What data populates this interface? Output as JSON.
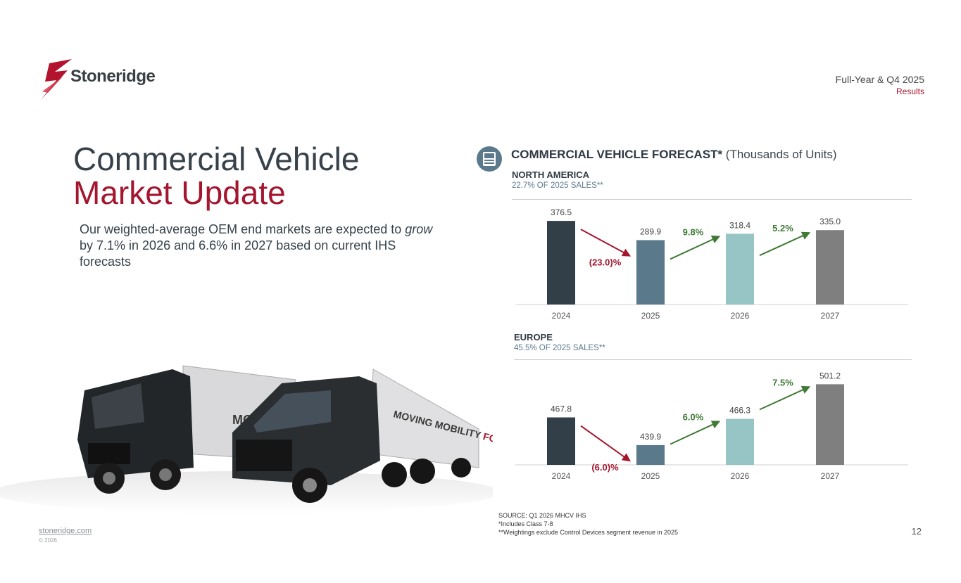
{
  "brand": {
    "name": "Stoneridge",
    "red": "#a3162e"
  },
  "header": {
    "line1": "Full-Year & Q4 2025",
    "line2": "Results"
  },
  "title": {
    "line1": "Commercial Vehicle",
    "line2": "Market Update"
  },
  "body": {
    "pre": "Our weighted-average OEM end markets are expected to ",
    "emph": "grow",
    "post": " by 7.1% in 2026 and 6.6% in 2027 based on current IHS forecasts"
  },
  "truck_banner": {
    "left": "MOVING",
    "right_part1": "MOVING MOBILITY ",
    "right_part2": "FORWARD"
  },
  "forecast": {
    "title": "COMMERCIAL VEHICLE FORECAST*",
    "unit": "(Thousands of Units)",
    "icon": "truck-front-icon"
  },
  "chart_data": [
    {
      "type": "bar",
      "region": "NORTH AMERICA",
      "subtitle": "22.7% OF 2025 SALES**",
      "categories": [
        "2024",
        "2025",
        "2026",
        "2027"
      ],
      "values": [
        376.5,
        289.9,
        318.4,
        335.0
      ],
      "value_labels": [
        "376.5",
        "289.9",
        "318.4",
        "335.0"
      ],
      "colors": [
        "#333f48",
        "#5a7a8c",
        "#97c4c4",
        "#7f7f7f"
      ],
      "changes": [
        {
          "label": "(23.0)%",
          "direction": "down",
          "color": "#a3162e"
        },
        {
          "label": "9.8%",
          "direction": "up",
          "color": "#3f7a35"
        },
        {
          "label": "5.2%",
          "direction": "up",
          "color": "#3f7a35"
        }
      ],
      "ylim": [
        0,
        380
      ]
    },
    {
      "type": "bar",
      "region": "EUROPE",
      "subtitle": "45.5% OF 2025 SALES**",
      "categories": [
        "2024",
        "2025",
        "2026",
        "2027"
      ],
      "values": [
        467.8,
        439.9,
        466.3,
        501.2
      ],
      "value_labels": [
        "467.8",
        "439.9",
        "466.3",
        "501.2"
      ],
      "colors": [
        "#333f48",
        "#5a7a8c",
        "#97c4c4",
        "#7f7f7f"
      ],
      "changes": [
        {
          "label": "(6.0)%",
          "direction": "down",
          "color": "#a3162e"
        },
        {
          "label": "6.0%",
          "direction": "up",
          "color": "#3f7a35"
        },
        {
          "label": "7.5%",
          "direction": "up",
          "color": "#3f7a35"
        }
      ],
      "ylim": [
        420,
        505
      ]
    }
  ],
  "footnotes": [
    "SOURCE: Q1 2026 MHCV IHS",
    "*Includes Class 7-8",
    "**Weightings exclude Control Devices segment revenue in 2025"
  ],
  "footer": {
    "site": "stoneridge.com",
    "copyright": "© 2026",
    "page": "12"
  }
}
